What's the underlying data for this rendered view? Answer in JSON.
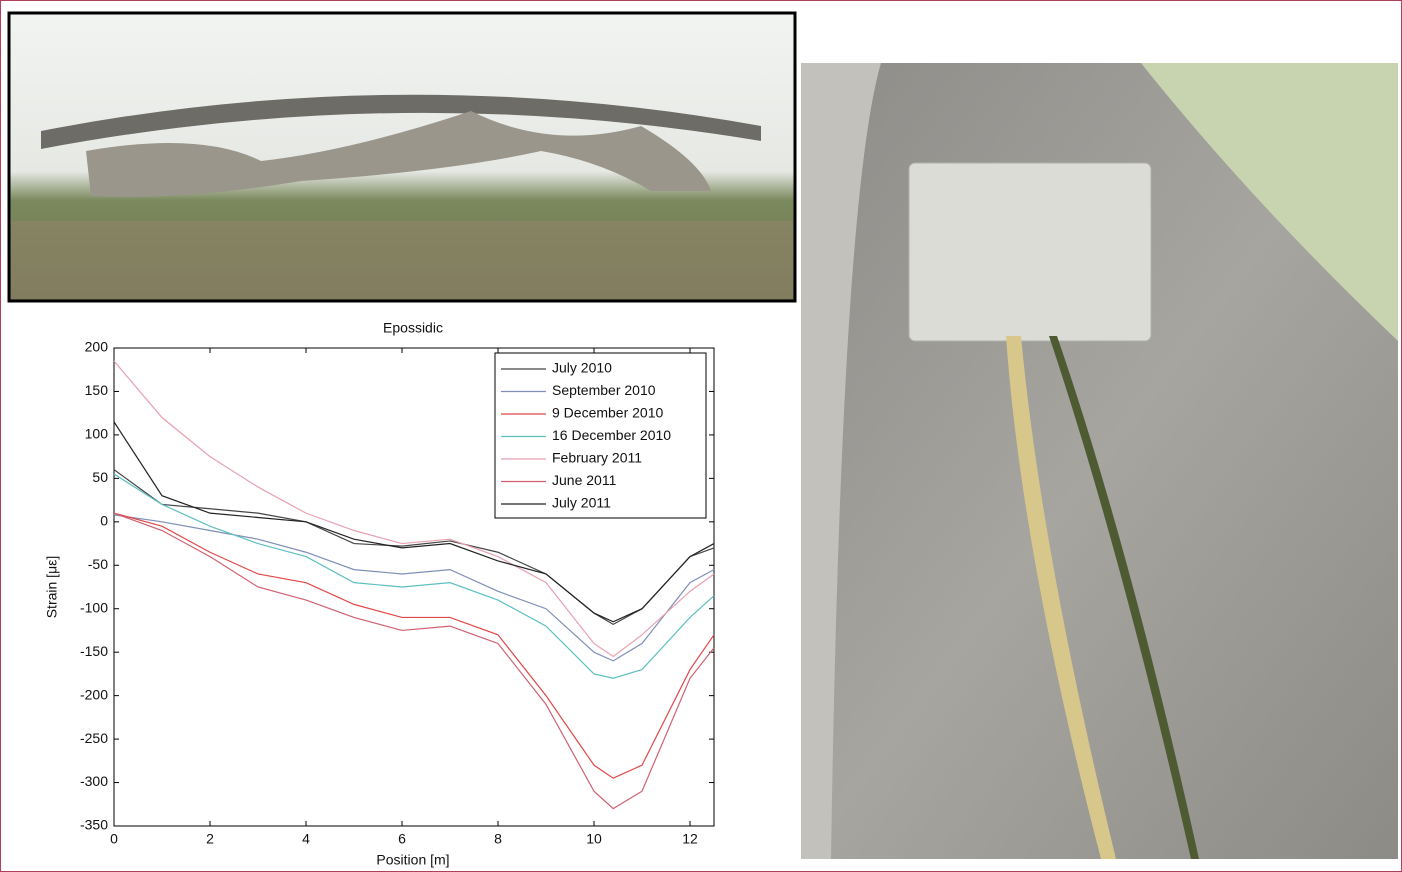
{
  "chart_data": {
    "type": "line",
    "title": "Epossidic",
    "x_label": "Position [m]",
    "y_label": "Strain [με]",
    "x": [
      0,
      1,
      2,
      3,
      4,
      5,
      6,
      7,
      8,
      9,
      10,
      10.4,
      11,
      12,
      12.5
    ],
    "series": [
      {
        "name": "July 2010",
        "color": "#444444",
        "values": [
          60,
          20,
          15,
          10,
          0,
          -25,
          -28,
          -22,
          -35,
          -60,
          -105,
          -118,
          -100,
          -40,
          -30
        ]
      },
      {
        "name": "September 2010",
        "color": "#7f8fb8",
        "values": [
          8,
          0,
          -10,
          -20,
          -35,
          -55,
          -60,
          -55,
          -80,
          -100,
          -150,
          -160,
          -140,
          -70,
          -55
        ]
      },
      {
        "name": "9 December 2010",
        "color": "#e04848",
        "values": [
          10,
          -5,
          -35,
          -60,
          -70,
          -95,
          -110,
          -110,
          -130,
          -200,
          -280,
          -295,
          -280,
          -170,
          -130
        ]
      },
      {
        "name": "16 December 2010",
        "color": "#5cc0c0",
        "values": [
          55,
          20,
          -5,
          -25,
          -40,
          -70,
          -75,
          -70,
          -90,
          -120,
          -175,
          -180,
          -170,
          -110,
          -85
        ]
      },
      {
        "name": "February 2011",
        "color": "#e8a0b0",
        "values": [
          185,
          120,
          75,
          40,
          10,
          -10,
          -25,
          -20,
          -40,
          -70,
          -140,
          -155,
          -130,
          -80,
          -60
        ]
      },
      {
        "name": "June 2011",
        "color": "#d06070",
        "values": [
          10,
          -10,
          -40,
          -75,
          -90,
          -110,
          -125,
          -120,
          -140,
          -210,
          -310,
          -330,
          -310,
          -180,
          -145
        ]
      },
      {
        "name": "July 2011",
        "color": "#222222",
        "values": [
          115,
          30,
          10,
          5,
          0,
          -20,
          -30,
          -25,
          -45,
          -60,
          -105,
          -115,
          -100,
          -40,
          -25
        ]
      }
    ],
    "xlim": [
      0,
      12.5
    ],
    "xticks": [
      0,
      2,
      4,
      6,
      8,
      10,
      12
    ],
    "ylim": [
      -350,
      200
    ],
    "yticks": [
      200,
      150,
      100,
      50,
      0,
      -50,
      -100,
      -150,
      -200,
      -250,
      -300,
      -350
    ],
    "legend": "upper right"
  }
}
